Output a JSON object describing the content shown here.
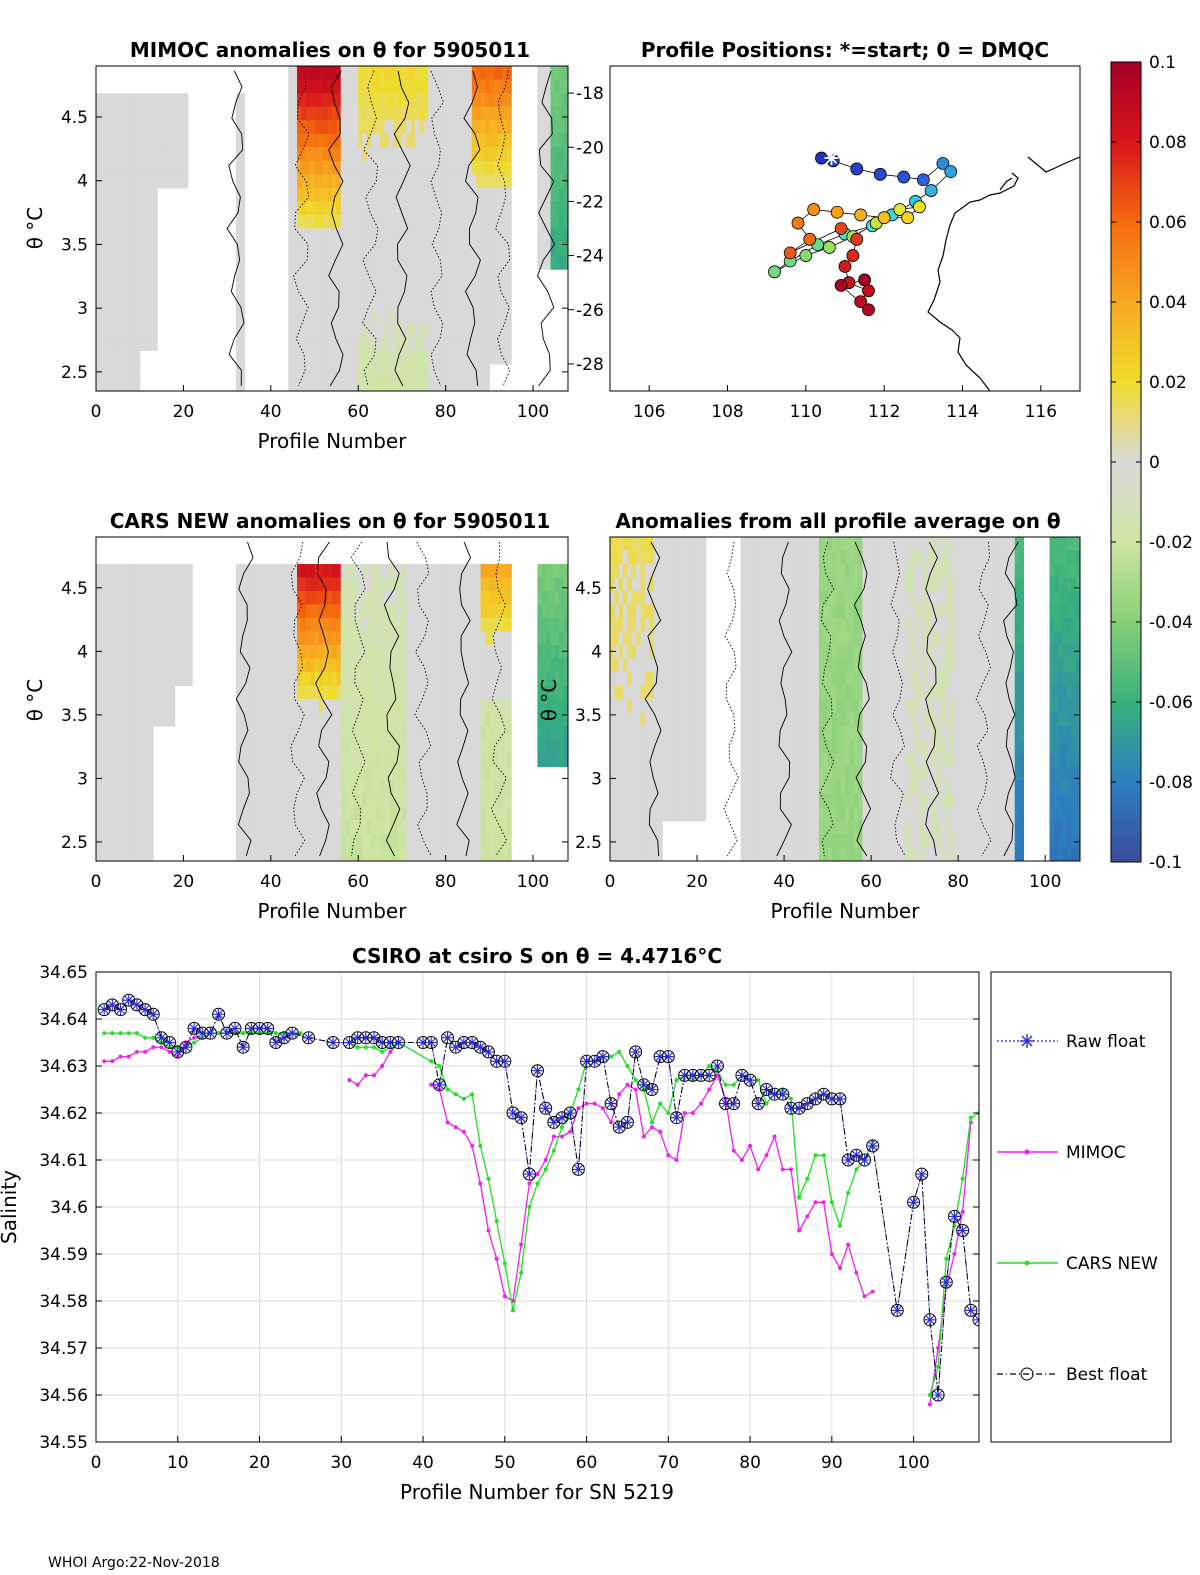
{
  "colors": {
    "raw": "#2a2ad8",
    "mimoc": "#f020f0",
    "cars": "#20e020",
    "best": "#000000",
    "grid": "#dcdcdc",
    "gray": "#d6d6d6"
  },
  "footer": "WHOI Argo:22-Nov-2018",
  "colorbar": {
    "ticks": [
      "0.1",
      "0.08",
      "0.06",
      "0.04",
      "0.02",
      "0",
      "-0.02",
      "-0.04",
      "-0.06",
      "-0.08",
      "-0.1"
    ],
    "stops": [
      "#a50026",
      "#d8151b",
      "#f56a0e",
      "#f7a822",
      "#f0dc2c",
      "#d9d9d9",
      "#cfe6a2",
      "#86cf78",
      "#38b17c",
      "#2d7fc0",
      "#3a4d9c"
    ]
  },
  "chart_data": [
    {
      "id": "mimoc_anom",
      "type": "heatmap",
      "title": "MIMOC anomalies on θ  for 5905011",
      "xlabel": "Profile Number",
      "ylabel": "θ °C",
      "xlim": [
        0,
        108
      ],
      "ylim": [
        2.35,
        4.9
      ],
      "xticks": [
        "0",
        "20",
        "40",
        "60",
        "80",
        "100"
      ],
      "yticks": [
        "2.5",
        "3",
        "3.5",
        "4",
        "4.5"
      ]
    },
    {
      "id": "positions",
      "type": "scatter",
      "title": "Profile Positions: *=start; 0 = DMQC",
      "xlim": [
        105,
        117
      ],
      "ylim": [
        -29,
        -17
      ],
      "xticks": [
        "106",
        "108",
        "110",
        "112",
        "114",
        "116"
      ],
      "yticks": [
        "-18",
        "-20",
        "-22",
        "-24",
        "-26",
        "-28"
      ],
      "points": [
        [
          110.4,
          -20.4,
          "#1f2fc0"
        ],
        [
          110.7,
          -20.5,
          "#2438c8"
        ],
        [
          111.3,
          -20.8,
          "#2540cc"
        ],
        [
          111.9,
          -21.0,
          "#2a48d0"
        ],
        [
          112.5,
          -21.1,
          "#2c52d4"
        ],
        [
          113.0,
          -21.2,
          "#3060d8"
        ],
        [
          113.5,
          -20.6,
          "#2f8ad8"
        ],
        [
          113.7,
          -20.9,
          "#31a0dc"
        ],
        [
          113.2,
          -21.6,
          "#35b0e0"
        ],
        [
          112.8,
          -22.0,
          "#2fc8e8"
        ],
        [
          112.2,
          -22.5,
          "#33dae0"
        ],
        [
          111.7,
          -22.9,
          "#40e0c8"
        ],
        [
          111.0,
          -23.2,
          "#55e0a8"
        ],
        [
          110.3,
          -23.6,
          "#62dc90"
        ],
        [
          109.6,
          -24.2,
          "#70d880"
        ],
        [
          109.2,
          -24.6,
          "#7ad480"
        ],
        [
          110.0,
          -24.0,
          "#84dc70"
        ],
        [
          110.6,
          -23.7,
          "#98e060"
        ],
        [
          111.2,
          -23.3,
          "#b0e048"
        ],
        [
          111.8,
          -22.8,
          "#c8e63c"
        ],
        [
          112.4,
          -22.3,
          "#e0e830"
        ],
        [
          112.9,
          -22.2,
          "#f0e02c"
        ],
        [
          112.6,
          -22.6,
          "#f8d020"
        ],
        [
          112.0,
          -22.6,
          "#f8c018"
        ],
        [
          111.4,
          -22.5,
          "#f8b018"
        ],
        [
          110.8,
          -22.4,
          "#f8a010"
        ],
        [
          110.2,
          -22.3,
          "#f49010"
        ],
        [
          109.8,
          -22.8,
          "#f07c12"
        ],
        [
          110.1,
          -23.4,
          "#ec6a14"
        ],
        [
          109.6,
          -23.9,
          "#e85a18"
        ],
        [
          110.9,
          -23.0,
          "#e24a18"
        ],
        [
          111.3,
          -23.4,
          "#de3818"
        ],
        [
          111.2,
          -24.0,
          "#d82818"
        ],
        [
          111.0,
          -24.4,
          "#d01c1c"
        ],
        [
          111.1,
          -25.0,
          "#c8141c"
        ],
        [
          111.6,
          -25.3,
          "#c0101f"
        ],
        [
          111.4,
          -25.7,
          "#b80c22"
        ],
        [
          111.6,
          -26.0,
          "#b00824"
        ],
        [
          110.9,
          -25.1,
          "#a80524"
        ],
        [
          111.5,
          -24.9,
          "#a50026"
        ]
      ]
    },
    {
      "id": "cars_anom",
      "type": "heatmap",
      "title": "CARS NEW anomalies on θ for 5905011",
      "xlabel": "Profile Number",
      "ylabel": "θ °C",
      "xlim": [
        0,
        108
      ],
      "ylim": [
        2.35,
        4.9
      ],
      "xticks": [
        "0",
        "20",
        "40",
        "60",
        "80",
        "100"
      ],
      "yticks": [
        "2.5",
        "3",
        "3.5",
        "4",
        "4.5"
      ]
    },
    {
      "id": "avg_anom",
      "type": "heatmap",
      "title": "Anomalies from all profile average on θ",
      "xlabel": "Profile Number",
      "ylabel": "θ °C",
      "xlim": [
        0,
        108
      ],
      "ylim": [
        2.35,
        4.9
      ],
      "xticks": [
        "0",
        "20",
        "40",
        "60",
        "80",
        "100"
      ],
      "yticks": [
        "2.5",
        "3",
        "3.5",
        "4",
        "4.5"
      ]
    },
    {
      "id": "salinity",
      "type": "line",
      "title": "CSIRO at csiro S on θ = 4.4716°C",
      "xlabel": "Profile Number for SN 5219",
      "ylabel": "Salinity",
      "xlim": [
        0,
        108
      ],
      "ylim": [
        34.55,
        34.65
      ],
      "xticks": [
        "0",
        "10",
        "20",
        "30",
        "40",
        "50",
        "60",
        "70",
        "80",
        "90",
        "100"
      ],
      "yticks": [
        "34.65",
        "34.64",
        "34.63",
        "34.62",
        "34.61",
        "34.6",
        "34.59",
        "34.58",
        "34.57",
        "34.56",
        "34.55"
      ],
      "legend": [
        "Raw float",
        "MIMOC",
        "CARS NEW",
        "Best float"
      ],
      "series": [
        {
          "name": "Best float",
          "x": [
            1,
            2,
            3,
            4,
            5,
            6,
            7,
            8,
            9,
            10,
            11,
            12,
            13,
            14,
            15,
            16,
            17,
            18,
            19,
            20,
            21,
            22,
            23,
            24,
            26,
            29,
            31,
            32,
            33,
            34,
            35,
            36,
            37,
            40,
            41,
            42,
            43,
            44,
            45,
            46,
            47,
            48,
            49,
            50,
            51,
            52,
            53,
            54,
            55,
            56,
            57,
            58,
            59,
            60,
            61,
            62,
            63,
            64,
            65,
            66,
            67,
            68,
            69,
            70,
            71,
            72,
            73,
            74,
            75,
            76,
            77,
            78,
            79,
            80,
            81,
            82,
            83,
            84,
            85,
            86,
            87,
            88,
            89,
            90,
            91,
            92,
            93,
            94,
            95,
            98,
            100,
            101,
            102,
            103,
            104,
            105,
            106,
            107,
            108
          ],
          "y": [
            34.642,
            34.643,
            34.642,
            34.644,
            34.643,
            34.642,
            34.641,
            34.636,
            34.635,
            34.633,
            34.634,
            34.638,
            34.637,
            34.637,
            34.641,
            34.637,
            34.638,
            34.634,
            34.638,
            34.638,
            34.638,
            34.635,
            34.636,
            34.637,
            34.636,
            34.635,
            34.635,
            34.636,
            34.636,
            34.636,
            34.635,
            34.635,
            34.635,
            34.635,
            34.635,
            34.626,
            34.636,
            34.634,
            34.635,
            34.635,
            34.634,
            34.633,
            34.631,
            34.631,
            34.62,
            34.619,
            34.607,
            34.629,
            34.621,
            34.618,
            34.619,
            34.62,
            34.608,
            34.631,
            34.631,
            34.632,
            34.622,
            34.617,
            34.618,
            34.633,
            34.626,
            34.625,
            34.632,
            34.632,
            34.619,
            34.628,
            34.628,
            34.628,
            34.628,
            34.63,
            34.622,
            34.622,
            34.628,
            34.627,
            34.622,
            34.625,
            34.624,
            34.624,
            34.621,
            34.621,
            34.622,
            34.623,
            34.624,
            34.623,
            34.623,
            34.61,
            34.611,
            34.61,
            34.613,
            34.578,
            34.601,
            34.607,
            34.576,
            34.56,
            34.584,
            34.598,
            34.595,
            34.578,
            34.576
          ]
        },
        {
          "name": "MIMOC",
          "x": [
            1,
            2,
            3,
            4,
            5,
            6,
            7,
            8,
            9,
            10,
            11,
            12,
            13,
            14,
            15,
            16,
            17,
            18,
            19,
            20,
            21,
            31,
            32,
            33,
            34,
            35,
            36,
            37,
            41,
            42,
            43,
            44,
            45,
            46,
            47,
            48,
            49,
            50,
            51,
            52,
            53,
            54,
            55,
            56,
            57,
            58,
            59,
            60,
            61,
            62,
            63,
            64,
            65,
            66,
            67,
            68,
            69,
            70,
            71,
            72,
            73,
            74,
            75,
            76,
            77,
            78,
            79,
            80,
            81,
            82,
            83,
            84,
            85,
            86,
            87,
            88,
            89,
            90,
            91,
            92,
            93,
            94,
            95,
            102,
            103,
            104,
            105,
            106,
            107
          ],
          "y": [
            34.631,
            34.631,
            34.632,
            34.632,
            34.633,
            34.633,
            34.634,
            34.634,
            34.633,
            34.632,
            34.635,
            34.636,
            34.636,
            34.637,
            34.637,
            34.637,
            34.637,
            34.637,
            34.637,
            34.637,
            34.637,
            34.627,
            34.626,
            34.628,
            34.628,
            34.63,
            34.633,
            34.635,
            34.626,
            34.625,
            34.618,
            34.617,
            34.616,
            34.613,
            34.605,
            34.595,
            34.589,
            34.581,
            34.58,
            34.592,
            34.605,
            34.607,
            34.61,
            34.615,
            34.615,
            34.616,
            34.621,
            34.622,
            34.622,
            34.621,
            34.618,
            34.624,
            34.626,
            34.625,
            34.615,
            34.617,
            34.616,
            34.611,
            34.61,
            34.62,
            34.62,
            34.622,
            34.625,
            34.628,
            34.623,
            34.612,
            34.61,
            34.613,
            34.608,
            34.611,
            34.615,
            34.608,
            34.608,
            34.595,
            34.598,
            34.601,
            34.601,
            34.59,
            34.587,
            34.592,
            34.586,
            34.581,
            34.582,
            34.558,
            34.57,
            34.583,
            34.59,
            34.599,
            34.618
          ]
        },
        {
          "name": "CARS NEW",
          "x": [
            1,
            2,
            3,
            4,
            5,
            6,
            7,
            8,
            9,
            10,
            11,
            12,
            13,
            14,
            15,
            16,
            17,
            18,
            19,
            20,
            21,
            22,
            23,
            24,
            25,
            31,
            32,
            33,
            34,
            35,
            36,
            37,
            41,
            42,
            43,
            44,
            45,
            46,
            47,
            48,
            49,
            50,
            51,
            52,
            53,
            54,
            55,
            56,
            57,
            58,
            59,
            60,
            61,
            62,
            63,
            64,
            65,
            66,
            67,
            68,
            69,
            70,
            71,
            72,
            73,
            74,
            75,
            76,
            77,
            78,
            79,
            80,
            81,
            82,
            83,
            84,
            85,
            86,
            87,
            88,
            89,
            90,
            91,
            92,
            93,
            94,
            95,
            102,
            103,
            104,
            105,
            106,
            107,
            108
          ],
          "y": [
            34.637,
            34.637,
            34.637,
            34.637,
            34.637,
            34.636,
            34.636,
            34.635,
            34.634,
            34.634,
            34.634,
            34.635,
            34.636,
            34.637,
            34.637,
            34.637,
            34.637,
            34.637,
            34.637,
            34.637,
            34.637,
            34.637,
            34.637,
            34.637,
            34.637,
            34.635,
            34.634,
            34.634,
            34.634,
            34.633,
            34.634,
            34.635,
            34.631,
            34.63,
            34.625,
            34.624,
            34.623,
            34.624,
            34.613,
            34.606,
            34.597,
            34.588,
            34.578,
            34.586,
            34.6,
            34.605,
            34.608,
            34.612,
            34.617,
            34.62,
            34.625,
            34.631,
            34.631,
            34.632,
            34.632,
            34.633,
            34.63,
            34.627,
            34.625,
            34.618,
            34.622,
            34.62,
            34.627,
            34.628,
            34.627,
            34.628,
            34.63,
            34.629,
            34.626,
            34.626,
            34.628,
            34.627,
            34.627,
            34.622,
            34.624,
            34.625,
            34.623,
            34.602,
            34.606,
            34.611,
            34.611,
            34.601,
            34.596,
            34.603,
            34.608,
            34.61,
            34.614,
            34.56,
            34.566,
            34.589,
            34.596,
            34.606,
            34.619,
            34.62
          ]
        }
      ]
    }
  ]
}
